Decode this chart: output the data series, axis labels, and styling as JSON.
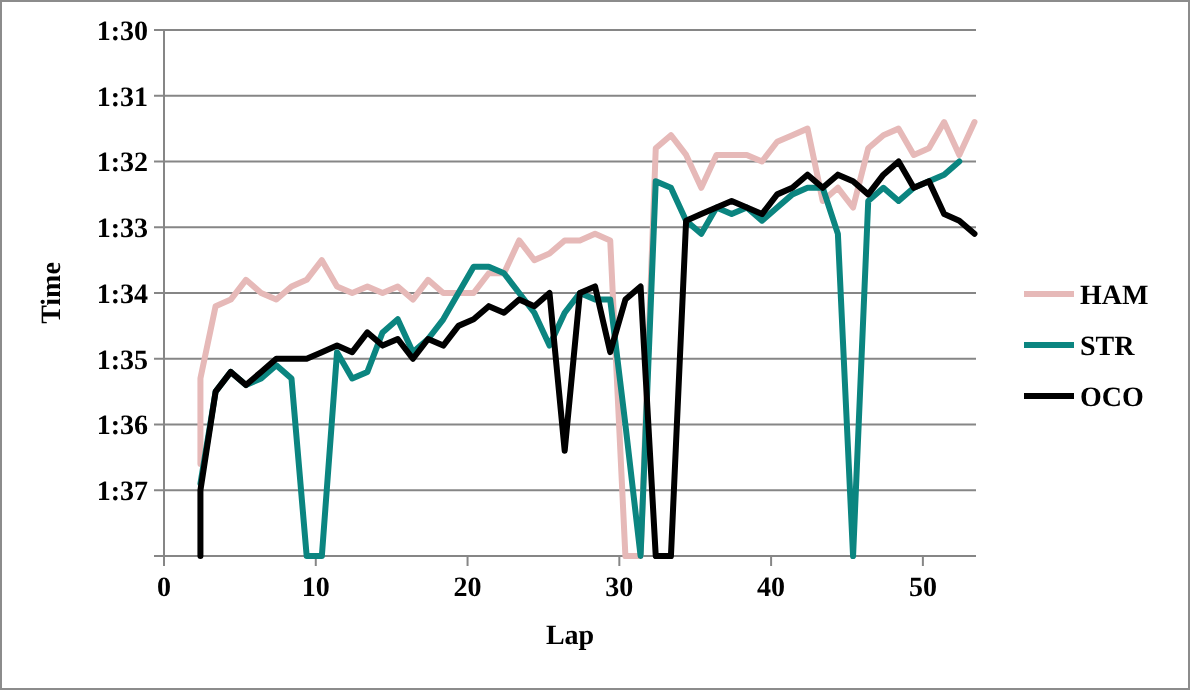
{
  "chart_data": {
    "type": "line",
    "xlabel": "Lap",
    "ylabel": "Time",
    "xlim": [
      0,
      53.5
    ],
    "xticks": [
      0,
      10,
      20,
      30,
      40,
      50
    ],
    "ylim": [
      98,
      90
    ],
    "yticks": [
      {
        "value": 90,
        "label": "1:30"
      },
      {
        "value": 91,
        "label": "1:31"
      },
      {
        "value": 92,
        "label": "1:32"
      },
      {
        "value": 93,
        "label": "1:33"
      },
      {
        "value": 94,
        "label": "1:34"
      },
      {
        "value": 95,
        "label": "1:35"
      },
      {
        "value": 96,
        "label": "1:36"
      },
      {
        "value": 97,
        "label": "1:37"
      },
      {
        "value": 98,
        "label": null
      }
    ],
    "grid": "y",
    "legend": "right",
    "marker": "none",
    "line_style": "solid",
    "series": [
      {
        "name": "HAM",
        "color": "#e6b9b8",
        "x": [
          2.4,
          2.4,
          3.4,
          4.4,
          5.4,
          6.4,
          7.4,
          8.4,
          9.4,
          10.4,
          11.4,
          12.4,
          13.4,
          14.4,
          15.4,
          16.4,
          17.4,
          18.4,
          19.4,
          20.4,
          21.4,
          22.4,
          23.4,
          24.4,
          25.4,
          26.4,
          27.4,
          28.4,
          29.4,
          30.4,
          31.4,
          32.4,
          33.4,
          34.4,
          35.4,
          36.4,
          37.4,
          38.4,
          39.4,
          40.4,
          41.4,
          42.4,
          43.4,
          44.4,
          45.4,
          46.4,
          47.4,
          48.4,
          49.4,
          50.4,
          51.4,
          52.4,
          53.4
        ],
        "values": [
          96.6,
          95.3,
          94.2,
          94.1,
          93.8,
          94.0,
          94.1,
          93.9,
          93.8,
          93.5,
          93.9,
          94.0,
          93.9,
          94.0,
          93.9,
          94.1,
          93.8,
          94.0,
          94.0,
          94.0,
          93.7,
          93.7,
          93.2,
          93.5,
          93.4,
          93.2,
          93.2,
          93.1,
          93.2,
          98,
          98,
          91.8,
          91.6,
          91.9,
          92.4,
          91.9,
          91.9,
          91.9,
          92.0,
          91.7,
          91.6,
          91.5,
          92.6,
          92.4,
          92.7,
          91.8,
          91.6,
          91.5,
          91.9,
          91.8,
          91.4,
          91.9,
          91.4
        ]
      },
      {
        "name": "STR",
        "color": "#0b8580",
        "x": [
          2.4,
          3.4,
          4.4,
          5.4,
          6.4,
          7.4,
          8.4,
          9.4,
          10.4,
          11.4,
          12.4,
          13.4,
          14.4,
          15.4,
          16.4,
          17.4,
          18.4,
          19.4,
          20.4,
          21.4,
          22.4,
          23.4,
          24.4,
          25.4,
          26.4,
          27.4,
          28.4,
          29.4,
          30.4,
          31.4,
          32.4,
          33.4,
          34.4,
          35.4,
          36.4,
          37.4,
          38.4,
          39.4,
          40.4,
          41.4,
          42.4,
          43.4,
          44.4,
          45.4,
          46.4,
          47.4,
          48.4,
          49.4,
          50.4,
          51.4,
          52.4
        ],
        "values": [
          96.9,
          95.5,
          95.2,
          95.4,
          95.3,
          95.1,
          95.3,
          98,
          98,
          94.9,
          95.3,
          95.2,
          94.6,
          94.4,
          94.9,
          94.7,
          94.4,
          94.0,
          93.6,
          93.6,
          93.7,
          94.0,
          94.3,
          94.8,
          94.3,
          94.0,
          94.1,
          94.1,
          96.0,
          98,
          92.3,
          92.4,
          92.9,
          93.1,
          92.7,
          92.8,
          92.7,
          92.9,
          92.7,
          92.5,
          92.4,
          92.4,
          93.1,
          98,
          92.6,
          92.4,
          92.6,
          92.4,
          92.3,
          92.2,
          92.0
        ]
      },
      {
        "name": "OCO",
        "color": "#000000",
        "x": [
          2.4,
          2.4,
          3.4,
          4.4,
          5.4,
          6.4,
          7.4,
          8.4,
          9.4,
          10.4,
          11.4,
          12.4,
          13.4,
          14.4,
          15.4,
          16.4,
          17.4,
          18.4,
          19.4,
          20.4,
          21.4,
          22.4,
          23.4,
          24.4,
          25.4,
          26.4,
          27.4,
          28.4,
          29.4,
          30.4,
          31.4,
          32.4,
          33.4,
          34.4,
          35.4,
          36.4,
          37.4,
          38.4,
          39.4,
          40.4,
          41.4,
          42.4,
          43.4,
          44.4,
          45.4,
          46.4,
          47.4,
          48.4,
          49.4,
          50.4,
          51.4,
          52.4,
          53.4
        ],
        "values": [
          98,
          97.0,
          95.5,
          95.2,
          95.4,
          95.2,
          95.0,
          95.0,
          95.0,
          94.9,
          94.8,
          94.9,
          94.6,
          94.8,
          94.7,
          95.0,
          94.7,
          94.8,
          94.5,
          94.4,
          94.2,
          94.3,
          94.1,
          94.2,
          94.0,
          96.4,
          94.0,
          93.9,
          94.9,
          94.1,
          93.9,
          98,
          98,
          92.9,
          92.8,
          92.7,
          92.6,
          92.7,
          92.8,
          92.5,
          92.4,
          92.2,
          92.4,
          92.2,
          92.3,
          92.5,
          92.2,
          92.0,
          92.4,
          92.3,
          92.8,
          92.9,
          93.1
        ]
      }
    ]
  }
}
